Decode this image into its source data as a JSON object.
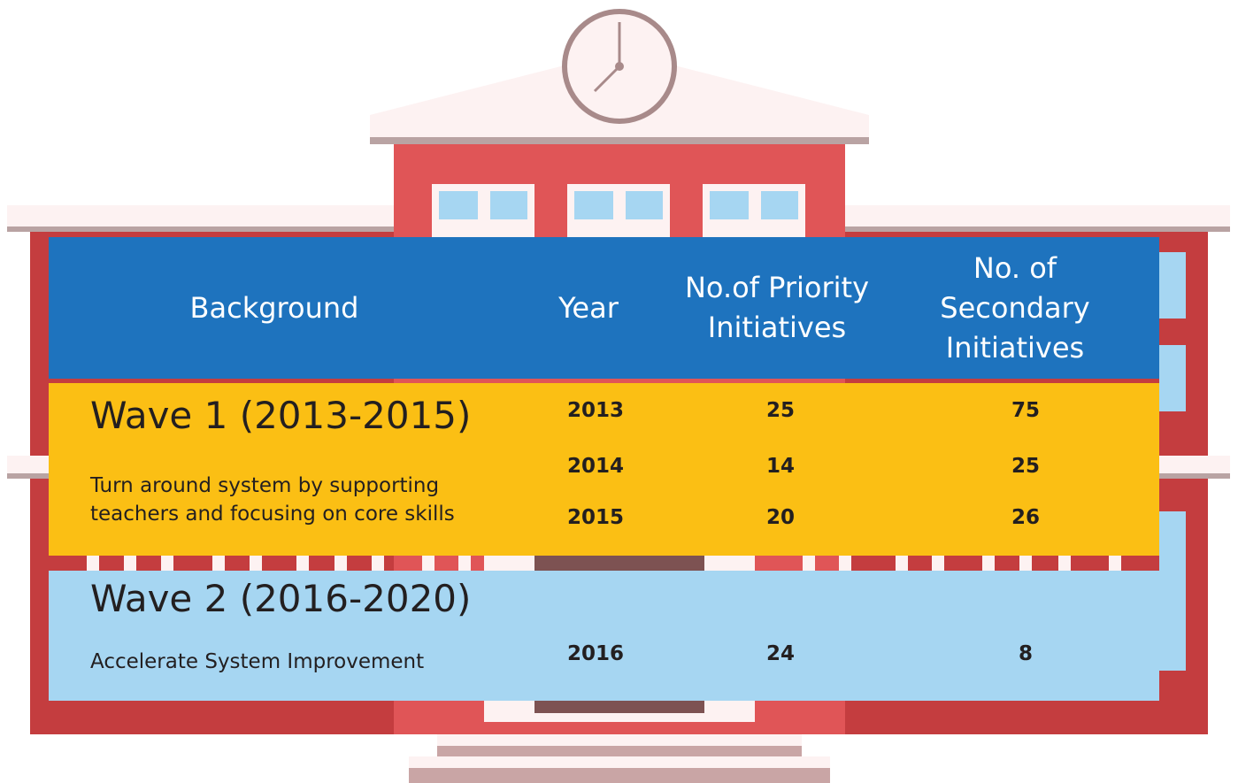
{
  "table": {
    "header": [
      "Background",
      "Year",
      "No.of Priority Initiatives",
      "No. of Secondary Initiatives"
    ],
    "groups": [
      {
        "title": "Wave 1 (2013-2015)",
        "description": "Turn around system by supporting teachers and focusing on core skills",
        "rows": [
          [
            2013,
            25,
            75
          ],
          [
            2014,
            14,
            25
          ],
          [
            2015,
            20,
            26
          ]
        ]
      },
      {
        "title": "Wave 2 (2016-2020)",
        "description": "Accelerate System Improvement",
        "rows": [
          [
            2016,
            24,
            8
          ]
        ]
      }
    ]
  }
}
